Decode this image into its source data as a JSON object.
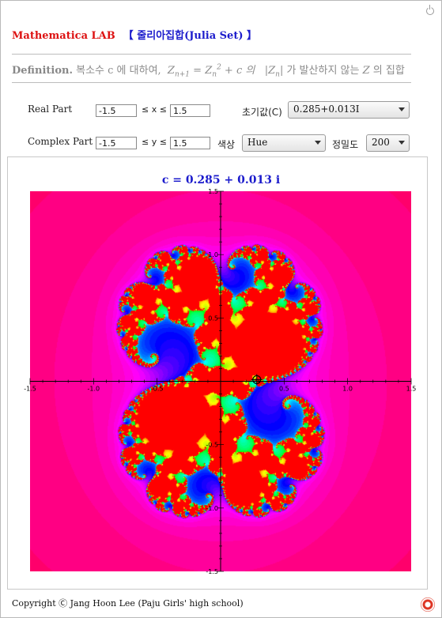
{
  "header": {
    "lab": "Mathematica LAB",
    "subtitle": "【 줄리아집합(Julia Set) 】"
  },
  "definition": {
    "label": "Definition.",
    "text1": "복소수 c 에 대하여,",
    "z": "Z",
    "sub_n1": "n+1",
    "eq": " = ",
    "sub_n": "n",
    "sup2": "2",
    "plus_c": " + c 의",
    "text2": "|Z",
    "text3": "| 가 발산하지 않는",
    "zvar": "Z",
    "text4": "의 집합"
  },
  "controls": {
    "real_label": "Real Part",
    "real_min": "-1.5",
    "real_max": "1.5",
    "x_rel": "≤ x ≤",
    "complex_label": "Complex Part",
    "imag_min": "-1.5",
    "imag_max": "1.5",
    "y_rel": "≤ y ≤",
    "init_label": "초기값(C)",
    "init_value": "0.285+0.013I",
    "color_label": "색상",
    "color_value": "Hue",
    "precision_label": "정밀도",
    "precision_value": "200"
  },
  "plot": {
    "title": "c = 0.285 + 0.013 i"
  },
  "chart_data": {
    "type": "heatmap",
    "title": "c = 0.285 + 0.013 i",
    "c_re": 0.285,
    "c_im": 0.013,
    "xlim": [
      -1.5,
      1.5
    ],
    "ylim": [
      -1.5,
      1.5
    ],
    "max_iter": 200,
    "color_function": "Hue",
    "x_ticks": [
      "-1.5",
      "-1.0",
      "-0.5",
      "0.5",
      "1.0",
      "1.5"
    ],
    "y_ticks": [
      "1.5",
      "1.0",
      "0.5",
      "-0.5",
      "-1.0",
      "-1.5"
    ],
    "x_tick_values": [
      -1.5,
      -1.0,
      -0.5,
      0.5,
      1.0,
      1.5
    ],
    "y_tick_values": [
      1.5,
      1.0,
      0.5,
      -0.5,
      -1.0,
      -1.5
    ],
    "marker": [
      0.285,
      0.013
    ]
  },
  "footer": {
    "copyright": "Copyright Ⓒ Jang Hoon Lee (Paju Girls' high school)"
  }
}
